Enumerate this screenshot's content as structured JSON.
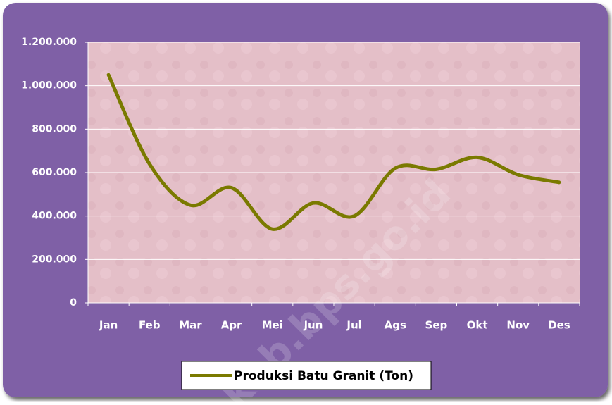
{
  "chart_data": {
    "type": "line",
    "categories": [
      "Jan",
      "Feb",
      "Mar",
      "Apr",
      "Mei",
      "Jun",
      "Jul",
      "Ags",
      "Sep",
      "Okt",
      "Nov",
      "Des"
    ],
    "series": [
      {
        "name": "Produksi Batu Granit (Ton)",
        "color": "#7a7a00",
        "values": [
          1050000,
          640000,
          450000,
          530000,
          340000,
          460000,
          400000,
          620000,
          615000,
          670000,
          590000,
          555000
        ]
      }
    ],
    "ylim": [
      0,
      1200000
    ],
    "yticks": [
      0,
      {
        "value": 200000,
        "label": "200.000"
      },
      {
        "value": 400000,
        "label": "400.000"
      },
      {
        "value": 600000,
        "label": "600.000"
      },
      {
        "value": 800000,
        "label": "800.000"
      },
      {
        "value": 1000000,
        "label": "1.000.000"
      },
      {
        "value": 1200000,
        "label": "1.200.000"
      }
    ],
    "grid": true,
    "smooth": true,
    "legend": "bottom",
    "watermark": "kab.bps.go.id"
  }
}
